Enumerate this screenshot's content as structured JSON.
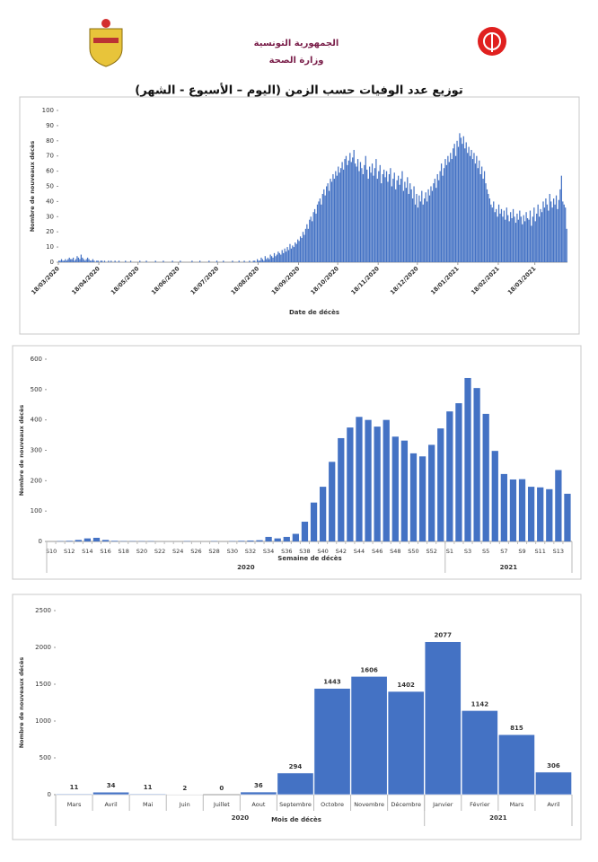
{
  "header": {
    "republic": "الجمهورية التونسية",
    "ministry": "وزارة الصحة",
    "title": "توزيع عدد الوفيات حسب الزمن (اليوم – الأسبوع - الشهر)"
  },
  "chart_data": [
    {
      "type": "bar",
      "color": "#4472c4",
      "grid": false,
      "x_label": "Date de décès",
      "y_label": "Nombre de nouveaux décès",
      "xlim": [
        0,
        390
      ],
      "xticks": [
        {
          "value": 0,
          "label": "18/03/2020"
        },
        {
          "value": 31,
          "label": "18/04/2020"
        },
        {
          "value": 61,
          "label": "18/05/2020"
        },
        {
          "value": 92,
          "label": "18/06/2020"
        },
        {
          "value": 122,
          "label": "18/07/2020"
        },
        {
          "value": 153,
          "label": "18/08/2020"
        },
        {
          "value": 184,
          "label": "18/09/2020"
        },
        {
          "value": 214,
          "label": "18/10/2020"
        },
        {
          "value": 245,
          "label": "18/11/2020"
        },
        {
          "value": 275,
          "label": "18/12/2020"
        },
        {
          "value": 306,
          "label": "18/01/2021"
        },
        {
          "value": 337,
          "label": "18/02/2021"
        },
        {
          "value": 365,
          "label": "18/03/2021"
        }
      ],
      "ylim": [
        0,
        100
      ],
      "yticks": [
        0,
        10,
        20,
        30,
        40,
        50,
        60,
        70,
        80,
        90,
        100
      ],
      "values": [
        1,
        1,
        2,
        1,
        1,
        2,
        1,
        2,
        3,
        2,
        2,
        3,
        1,
        2,
        4,
        3,
        2,
        5,
        3,
        2,
        1,
        2,
        3,
        2,
        1,
        1,
        2,
        1,
        0,
        1,
        1,
        0,
        1,
        1,
        0,
        1,
        0,
        0,
        1,
        0,
        1,
        0,
        0,
        1,
        0,
        0,
        1,
        0,
        0,
        0,
        0,
        1,
        0,
        0,
        0,
        1,
        0,
        0,
        0,
        0,
        0,
        0,
        1,
        0,
        0,
        0,
        0,
        1,
        0,
        0,
        0,
        0,
        0,
        0,
        1,
        0,
        0,
        0,
        0,
        0,
        1,
        0,
        0,
        0,
        0,
        0,
        0,
        1,
        0,
        0,
        0,
        0,
        0,
        1,
        0,
        0,
        0,
        0,
        0,
        0,
        0,
        0,
        1,
        0,
        0,
        0,
        0,
        0,
        1,
        0,
        0,
        0,
        0,
        0,
        0,
        1,
        0,
        0,
        0,
        0,
        0,
        1,
        0,
        0,
        0,
        0,
        1,
        0,
        0,
        0,
        0,
        0,
        0,
        1,
        0,
        0,
        0,
        0,
        1,
        0,
        0,
        0,
        1,
        0,
        0,
        0,
        1,
        0,
        0,
        1,
        1,
        0,
        2,
        1,
        1,
        3,
        2,
        1,
        4,
        2,
        3,
        2,
        5,
        4,
        3,
        6,
        4,
        5,
        7,
        6,
        5,
        8,
        6,
        9,
        7,
        10,
        8,
        12,
        9,
        11,
        10,
        13,
        12,
        15,
        14,
        17,
        16,
        20,
        18,
        22,
        25,
        22,
        28,
        30,
        27,
        33,
        35,
        32,
        38,
        40,
        42,
        38,
        45,
        48,
        44,
        50,
        52,
        47,
        55,
        53,
        58,
        55,
        60,
        57,
        63,
        59,
        62,
        66,
        61,
        68,
        70,
        64,
        67,
        72,
        66,
        69,
        74,
        65,
        63,
        68,
        60,
        66,
        62,
        58,
        64,
        70,
        61,
        55,
        63,
        59,
        65,
        57,
        62,
        68,
        55,
        60,
        64,
        52,
        58,
        61,
        56,
        60,
        53,
        58,
        62,
        50,
        55,
        59,
        48,
        54,
        57,
        51,
        55,
        60,
        47,
        53,
        49,
        56,
        45,
        52,
        48,
        42,
        50,
        38,
        45,
        36,
        44,
        40,
        47,
        38,
        42,
        46,
        40,
        48,
        44,
        50,
        47,
        52,
        55,
        49,
        58,
        54,
        60,
        65,
        57,
        62,
        68,
        64,
        70,
        66,
        72,
        68,
        75,
        78,
        70,
        80,
        76,
        85,
        82,
        78,
        83,
        75,
        79,
        72,
        76,
        70,
        74,
        68,
        72,
        65,
        70,
        62,
        67,
        58,
        63,
        55,
        60,
        52,
        48,
        45,
        42,
        38,
        36,
        40,
        33,
        35,
        30,
        38,
        32,
        35,
        30,
        34,
        28,
        36,
        31,
        27,
        33,
        29,
        35,
        30,
        26,
        32,
        28,
        34,
        30,
        25,
        31,
        27,
        33,
        29,
        28,
        34,
        24,
        30,
        36,
        27,
        32,
        38,
        30,
        35,
        33,
        40,
        36,
        42,
        38,
        34,
        45,
        40,
        36,
        42,
        38,
        44,
        35,
        41,
        48,
        57,
        40,
        38,
        36,
        22
      ]
    },
    {
      "type": "bar",
      "color": "#4472c4",
      "grid": false,
      "x_label": "Semaine de décès",
      "y_label": "Nombre de nouveaux décès",
      "ylim": [
        0,
        600
      ],
      "yticks": [
        0,
        100,
        200,
        300,
        400,
        500,
        600
      ],
      "categories": [
        "S10",
        null,
        "S12",
        null,
        "S14",
        null,
        "S16",
        null,
        "S18",
        null,
        "S20",
        null,
        "S22",
        null,
        "S24",
        null,
        "S26",
        null,
        "S28",
        null,
        "S30",
        null,
        "S32",
        null,
        "S34",
        null,
        "S36",
        null,
        "S38",
        null,
        "S40",
        null,
        "S42",
        null,
        "S44",
        null,
        "S46",
        null,
        "S48",
        null,
        "S50",
        null,
        "S52",
        null,
        "S1",
        null,
        "S3",
        null,
        "S5",
        null,
        "S7",
        null,
        "S9",
        null,
        "S11",
        null,
        "S13",
        null
      ],
      "values": [
        0,
        1,
        2,
        5,
        10,
        12,
        5,
        2,
        1,
        1,
        1,
        1,
        0,
        0,
        0,
        1,
        0,
        0,
        1,
        0,
        1,
        2,
        3,
        4,
        15,
        10,
        15,
        25,
        65,
        128,
        180,
        262,
        340,
        375,
        410,
        400,
        378,
        400,
        345,
        332,
        290,
        280,
        318,
        372,
        428,
        455,
        538,
        505,
        420,
        298,
        222,
        204,
        205,
        180,
        178,
        172,
        235,
        157
      ],
      "groups": [
        {
          "label": "2020",
          "span": 44
        },
        {
          "label": "2021",
          "span": 14
        }
      ]
    },
    {
      "type": "bar",
      "color": "#4472c4",
      "grid": false,
      "x_label": "Mois de décès",
      "y_label": "Nombre de nouveaux décès",
      "ylim": [
        0,
        2500
      ],
      "yticks": [
        0,
        500,
        1000,
        1500,
        2000,
        2500
      ],
      "categories": [
        "Mars",
        "Avril",
        "Mai",
        "Juin",
        "Juillet",
        "Aout",
        "Septembre",
        "Octobre",
        "Novembre",
        "Décembre",
        "Janvier",
        "Février",
        "Mars",
        "Avril"
      ],
      "values": [
        11,
        34,
        11,
        2,
        0,
        36,
        294,
        1443,
        1606,
        1402,
        2077,
        1142,
        815,
        306
      ],
      "groups": [
        {
          "label": "2020",
          "span": 10
        },
        {
          "label": "2021",
          "span": 4
        }
      ]
    }
  ]
}
